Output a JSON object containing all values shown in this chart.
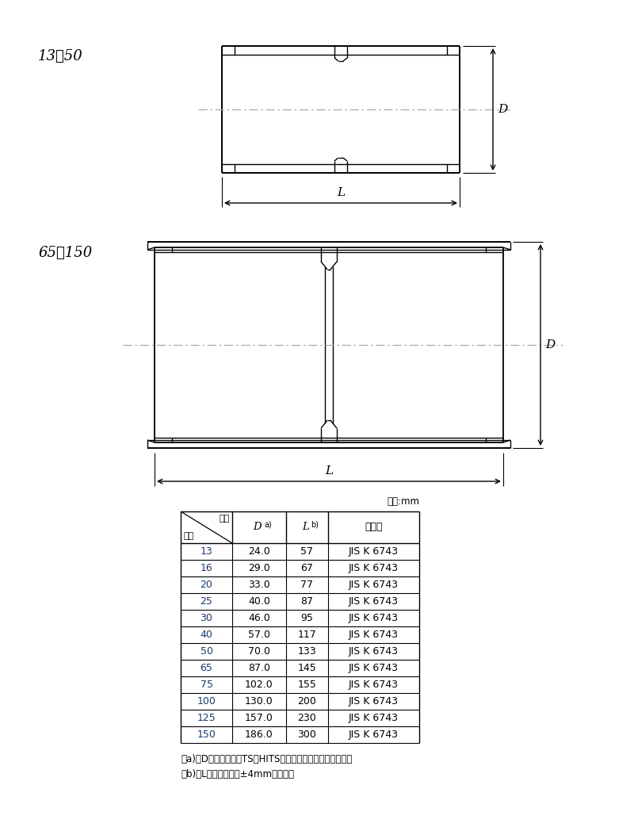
{
  "bg_color": "#ffffff",
  "line_color": "#000000",
  "centerline_color": "#aaaaaa",
  "label1": "13～50",
  "label2": "65～150",
  "dim_D": "D",
  "dim_L": "L",
  "unit_label": "単位:mm",
  "header_kigo": "記号",
  "header_kokei": "呼径",
  "header_kikaku": "規　格",
  "table_data": [
    [
      "13",
      "24.0",
      "57",
      "JIS K 6743"
    ],
    [
      "16",
      "29.0",
      "67",
      "JIS K 6743"
    ],
    [
      "20",
      "33.0",
      "77",
      "JIS K 6743"
    ],
    [
      "25",
      "40.0",
      "87",
      "JIS K 6743"
    ],
    [
      "30",
      "46.0",
      "95",
      "JIS K 6743"
    ],
    [
      "40",
      "57.0",
      "117",
      "JIS K 6743"
    ],
    [
      "50",
      "70.0",
      "133",
      "JIS K 6743"
    ],
    [
      "65",
      "87.0",
      "145",
      "JIS K 6743"
    ],
    [
      "75",
      "102.0",
      "155",
      "JIS K 6743"
    ],
    [
      "100",
      "130.0",
      "200",
      "JIS K 6743"
    ],
    [
      "125",
      "157.0",
      "230",
      "JIS K 6743"
    ],
    [
      "150",
      "186.0",
      "300",
      "JIS K 6743"
    ]
  ],
  "note_a": "注a)　Dの許容差は、TS・HITS継手受口共通寸法図による。",
  "note_b": "注b)　Lの許容差は、±4mmとする。"
}
